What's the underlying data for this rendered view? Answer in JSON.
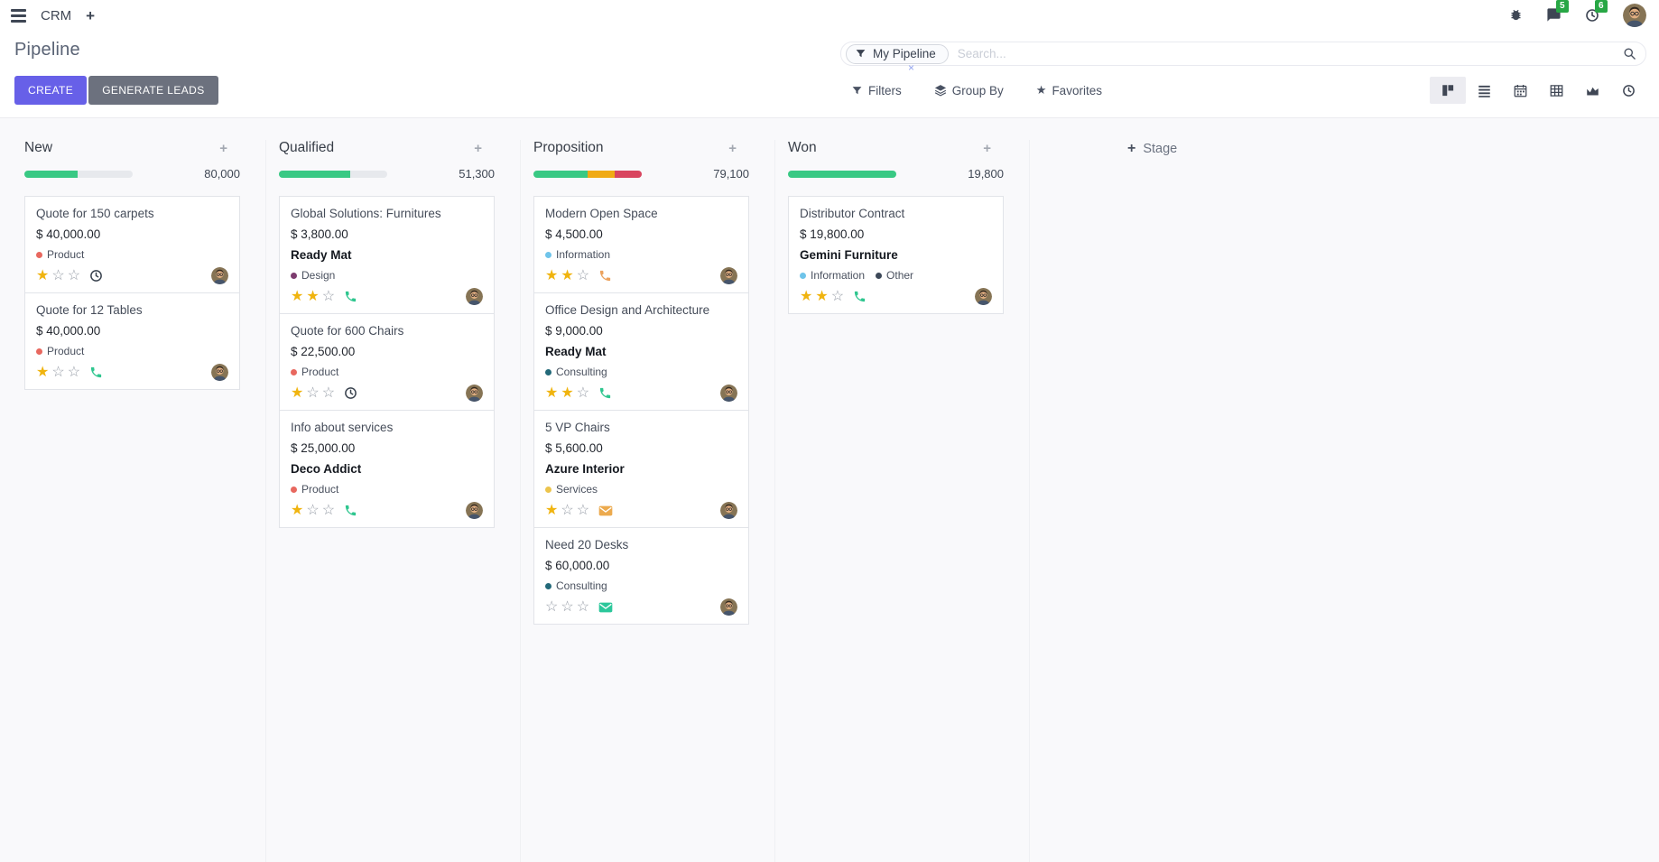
{
  "navbar": {
    "app_name": "CRM",
    "plus": "+",
    "messages_badge": "5",
    "activities_badge": "6"
  },
  "control_panel": {
    "title": "Pipeline",
    "create_label": "CREATE",
    "generate_label": "GENERATE LEADS",
    "search": {
      "facet": "My Pipeline",
      "placeholder": "Search...",
      "remove": "×"
    },
    "menus": {
      "filters": "Filters",
      "group_by": "Group By",
      "favorites": "Favorites"
    }
  },
  "icons": {
    "star_filled": "★",
    "star_empty": "☆",
    "plus": "+",
    "fav_star": "★"
  },
  "colors": {
    "star_filled": "#f0b40f",
    "star_empty": "#969ca6",
    "progress_green": "#39c984",
    "progress_yellow": "#f0ab14",
    "progress_red": "#d9455f"
  },
  "kanban": {
    "add_stage_label": "Stage",
    "columns": [
      {
        "name": "New",
        "total": "80,000",
        "progress": [
          {
            "color": "#39c984",
            "pct": 49
          }
        ],
        "cards": [
          {
            "title": "Quote for 150 carpets",
            "amount": "$ 40,000.00",
            "tags": [
              {
                "label": "Product",
                "color": "#e8685f"
              }
            ],
            "stars": 1,
            "activity": {
              "icon": "clock",
              "color": "#39424e"
            }
          },
          {
            "title": "Quote for 12 Tables",
            "amount": "$ 40,000.00",
            "tags": [
              {
                "label": "Product",
                "color": "#e8685f"
              }
            ],
            "stars": 1,
            "activity": {
              "icon": "phone",
              "color": "#2fc68f"
            }
          }
        ]
      },
      {
        "name": "Qualified",
        "total": "51,300",
        "progress": [
          {
            "color": "#39c984",
            "pct": 66
          }
        ],
        "cards": [
          {
            "title": "Global Solutions: Furnitures",
            "amount": "$ 3,800.00",
            "partner": "Ready Mat",
            "tags": [
              {
                "label": "Design",
                "color": "#7d3c6f"
              }
            ],
            "stars": 2,
            "activity": {
              "icon": "phone",
              "color": "#2fc68f"
            }
          },
          {
            "title": "Quote for 600 Chairs",
            "amount": "$ 22,500.00",
            "tags": [
              {
                "label": "Product",
                "color": "#e8685f"
              }
            ],
            "stars": 1,
            "activity": {
              "icon": "clock",
              "color": "#39424e"
            }
          },
          {
            "title": "Info about services",
            "amount": "$ 25,000.00",
            "partner": "Deco Addict",
            "tags": [
              {
                "label": "Product",
                "color": "#e8685f"
              }
            ],
            "stars": 1,
            "activity": {
              "icon": "phone",
              "color": "#2fc68f"
            }
          }
        ]
      },
      {
        "name": "Proposition",
        "total": "79,100",
        "progress": [
          {
            "color": "#39c984",
            "pct": 50
          },
          {
            "color": "#f0ab14",
            "pct": 25
          },
          {
            "color": "#d9455f",
            "pct": 25
          }
        ],
        "cards": [
          {
            "title": "Modern Open Space",
            "amount": "$ 4,500.00",
            "tags": [
              {
                "label": "Information",
                "color": "#6fc4ea"
              }
            ],
            "stars": 2,
            "activity": {
              "icon": "phone",
              "color": "#eca25d"
            }
          },
          {
            "title": "Office Design and Architecture",
            "amount": "$ 9,000.00",
            "partner": "Ready Mat",
            "tags": [
              {
                "label": "Consulting",
                "color": "#236979"
              }
            ],
            "stars": 2,
            "activity": {
              "icon": "phone",
              "color": "#2fc68f"
            }
          },
          {
            "title": "5 VP Chairs",
            "amount": "$ 5,600.00",
            "partner": "Azure Interior",
            "tags": [
              {
                "label": "Services",
                "color": "#ecc44c"
              }
            ],
            "stars": 1,
            "activity": {
              "icon": "envelope",
              "color": "#ecaa4e"
            }
          },
          {
            "title": "Need 20 Desks",
            "amount": "$ 60,000.00",
            "tags": [
              {
                "label": "Consulting",
                "color": "#236979"
              }
            ],
            "stars": 0,
            "activity": {
              "icon": "envelope",
              "color": "#2cc79b"
            }
          }
        ]
      },
      {
        "name": "Won",
        "total": "19,800",
        "progress": [
          {
            "color": "#39c984",
            "pct": 100
          }
        ],
        "cards": [
          {
            "title": "Distributor Contract",
            "amount": "$ 19,800.00",
            "partner": "Gemini Furniture",
            "tags": [
              {
                "label": "Information",
                "color": "#6fc4ea"
              },
              {
                "label": "Other",
                "color": "#3c4858"
              }
            ],
            "stars": 2,
            "activity": {
              "icon": "phone",
              "color": "#2fc68f"
            }
          }
        ]
      }
    ]
  }
}
